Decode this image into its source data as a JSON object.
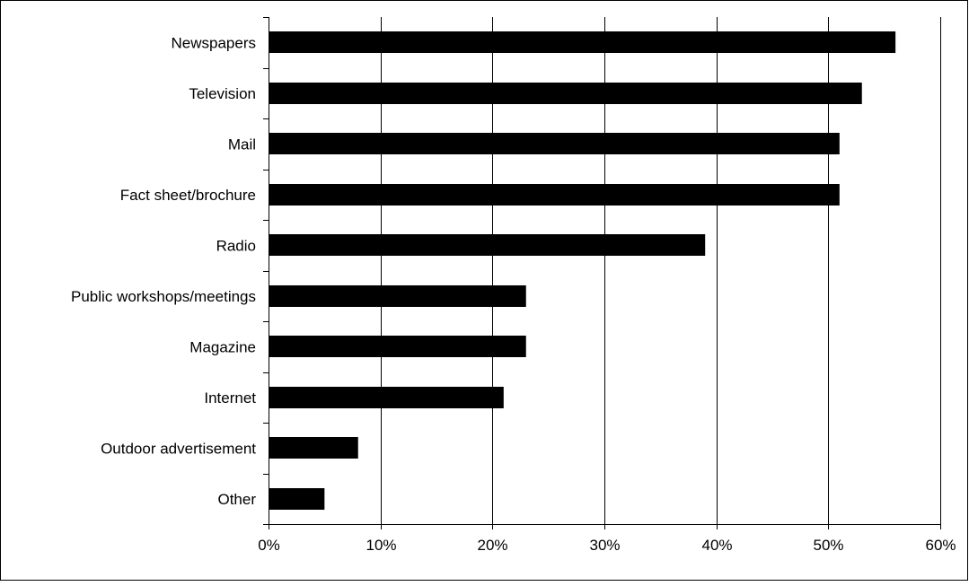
{
  "chart_data": {
    "type": "bar",
    "orientation": "horizontal",
    "categories": [
      "Newspapers",
      "Television",
      "Mail",
      "Fact sheet/brochure",
      "Radio",
      "Public workshops/meetings",
      "Magazine",
      "Internet",
      "Outdoor advertisement",
      "Other"
    ],
    "values": [
      56,
      53,
      51,
      51,
      39,
      23,
      23,
      21,
      8,
      5
    ],
    "value_unit": "%",
    "xlim": [
      0,
      60
    ],
    "x_ticks": [
      0,
      10,
      20,
      30,
      40,
      50,
      60
    ],
    "x_tick_labels": [
      "0%",
      "10%",
      "20%",
      "30%",
      "40%",
      "50%",
      "60%"
    ],
    "title": "",
    "xlabel": "",
    "ylabel": "",
    "grid": "vertical gridlines",
    "legend": "none",
    "bar_color": "#000000",
    "grid_color": "#000000",
    "border_color": "#000000"
  }
}
